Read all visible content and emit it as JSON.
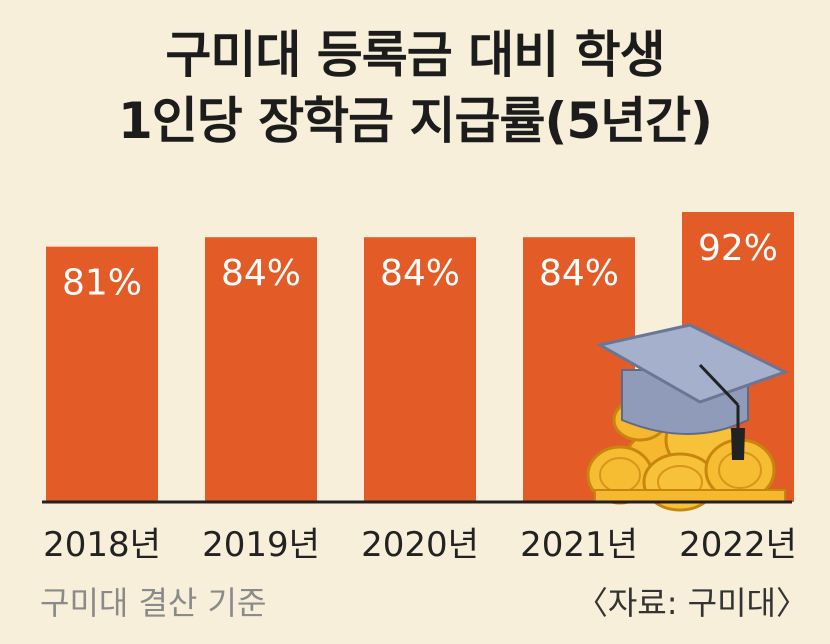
{
  "title_line1": "구미대 등록금 대비 학생",
  "title_line2": "1인당 장학금 지급률(5년간)",
  "footnote_basis": "구미대 결산 기준",
  "footnote_source": "〈자료: 구미대〉",
  "colors": {
    "background": "#f7efd9",
    "bar": "#e35b26",
    "bar_label": "#ffffff",
    "axis": "#222222",
    "tick": "#222222"
  },
  "chart_data": {
    "type": "bar",
    "categories": [
      "2018년",
      "2019년",
      "2020년",
      "2021년",
      "2022년"
    ],
    "values": [
      81,
      84,
      84,
      84,
      92
    ],
    "value_labels": [
      "81%",
      "84%",
      "84%",
      "84%",
      "92%"
    ],
    "title": "구미대 등록금 대비 학생 1인당 장학금 지급률(5년간)",
    "xlabel": "",
    "ylabel": "",
    "ylim": [
      0,
      92
    ],
    "grid": false,
    "legend": "none",
    "decoration": "graduation-cap-and-coins-icon"
  }
}
